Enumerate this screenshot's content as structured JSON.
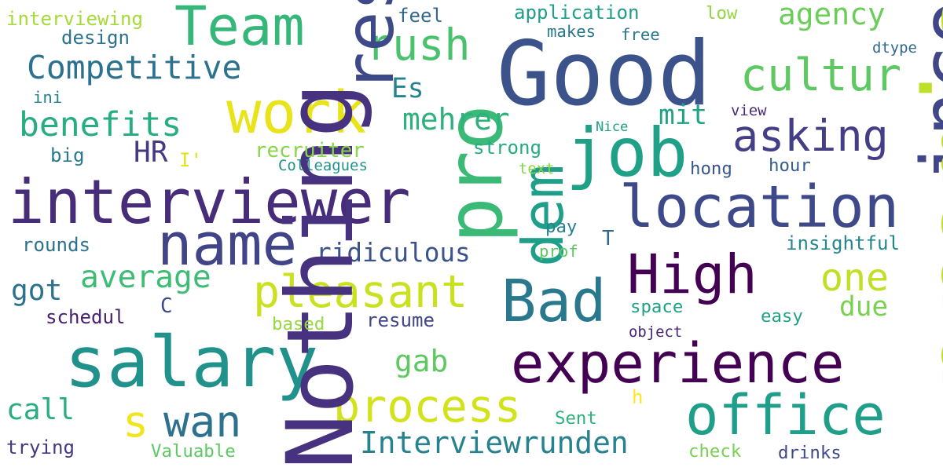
{
  "words": [
    {
      "text": "Good",
      "color": "#3b528b"
    },
    {
      "text": "salary",
      "color": "#21918c"
    },
    {
      "text": "interviewer",
      "color": "#472c7a"
    },
    {
      "text": "experience",
      "color": "#440154"
    },
    {
      "text": "location",
      "color": "#3e4989"
    },
    {
      "text": "Team",
      "color": "#35b779"
    },
    {
      "text": "office",
      "color": "#1f9e89"
    },
    {
      "text": "High",
      "color": "#440154"
    },
    {
      "text": "job",
      "color": "#1fa187"
    },
    {
      "text": "name",
      "color": "#414487"
    },
    {
      "text": "Bad",
      "color": "#2a788e"
    },
    {
      "text": "work",
      "color": "#e8e419"
    },
    {
      "text": "process",
      "color": "#d2e21b"
    },
    {
      "text": "pleasant",
      "color": "#cae11f"
    },
    {
      "text": "wan",
      "color": "#2c728e"
    },
    {
      "text": "cultur",
      "color": "#5ec962"
    },
    {
      "text": "asking",
      "color": "#433e85"
    },
    {
      "text": "rush",
      "color": "#4ac16d"
    },
    {
      "text": "Competitive",
      "color": "#2c728e"
    },
    {
      "text": "benefits",
      "color": "#27ad81"
    },
    {
      "text": "one",
      "color": "#c0df25"
    },
    {
      "text": "average",
      "color": "#3dbc74"
    },
    {
      "text": "pro",
      "color": "#3aba76"
    },
    {
      "text": "agency",
      "color": "#6ccd5a"
    },
    {
      "text": "Interviewrunden",
      "color": "#26828e"
    },
    {
      "text": "mehrer",
      "color": "#2db27d"
    },
    {
      "text": "ridiculous",
      "color": "#3b528b"
    },
    {
      "text": "gab",
      "color": "#5ec962"
    },
    {
      "text": "Es",
      "color": "#26828e"
    },
    {
      "text": "s",
      "color": "#f1e51d"
    },
    {
      "text": "call",
      "color": "#27ad81"
    },
    {
      "text": "got",
      "color": "#2c728e"
    },
    {
      "text": "due",
      "color": "#7ad151"
    },
    {
      "text": "mit",
      "color": "#20a386"
    },
    {
      "text": "HR",
      "color": "#443a83"
    },
    {
      "text": "Nothing",
      "color": "#46327e"
    },
    {
      "text": "dem",
      "color": "#1f9e89"
    },
    {
      "text": "interviewing",
      "color": "#a5db36"
    },
    {
      "text": "application",
      "color": "#1f9e89"
    },
    {
      "text": "income",
      "color": "#404688"
    },
    {
      "text": "promises",
      "color": "#bddf26"
    },
    {
      "text": "insightful",
      "color": "#24878e"
    },
    {
      "text": "resume",
      "color": "#404688"
    },
    {
      "text": "recruiter",
      "color": "#89d548"
    },
    {
      "text": "rounds",
      "color": "#2c728e"
    },
    {
      "text": "strong",
      "color": "#25ab82"
    },
    {
      "text": "hong",
      "color": "#39568c"
    },
    {
      "text": "hour",
      "color": "#355f8d"
    },
    {
      "text": "low",
      "color": "#93d741"
    },
    {
      "text": "feel",
      "color": "#31688e"
    },
    {
      "text": "design",
      "color": "#2c728e"
    },
    {
      "text": "makes",
      "color": "#2a768e"
    },
    {
      "text": "free",
      "color": "#2a788e"
    },
    {
      "text": "ini",
      "color": "#26828e"
    },
    {
      "text": "big",
      "color": "#2a788e"
    },
    {
      "text": "I'",
      "color": "#dfe318"
    },
    {
      "text": "Colleagues",
      "color": "#21918c"
    },
    {
      "text": "pay",
      "color": "#26828e"
    },
    {
      "text": "prof",
      "color": "#5ec962"
    },
    {
      "text": "T",
      "color": "#31688e"
    },
    {
      "text": "space",
      "color": "#1fa187"
    },
    {
      "text": "easy",
      "color": "#20a386"
    },
    {
      "text": "object",
      "color": "#482475"
    },
    {
      "text": "schedul",
      "color": "#482071"
    },
    {
      "text": "C",
      "color": "#3e4989"
    },
    {
      "text": "based",
      "color": "#95d840"
    },
    {
      "text": "trying",
      "color": "#453781"
    },
    {
      "text": "Valuable",
      "color": "#5ec962"
    },
    {
      "text": "Sent",
      "color": "#2db27d"
    },
    {
      "text": "check",
      "color": "#7ad151"
    },
    {
      "text": "drinks",
      "color": "#3e4989"
    },
    {
      "text": "h",
      "color": "#fde725"
    },
    {
      "text": "text",
      "color": "#86d549"
    },
    {
      "text": "Nice",
      "color": "#1f9e89"
    },
    {
      "text": "view",
      "color": "#472d7b"
    },
    {
      "text": "dtype",
      "color": "#31688e"
    },
    {
      "text": "respect",
      "color": "#3e4989"
    }
  ]
}
